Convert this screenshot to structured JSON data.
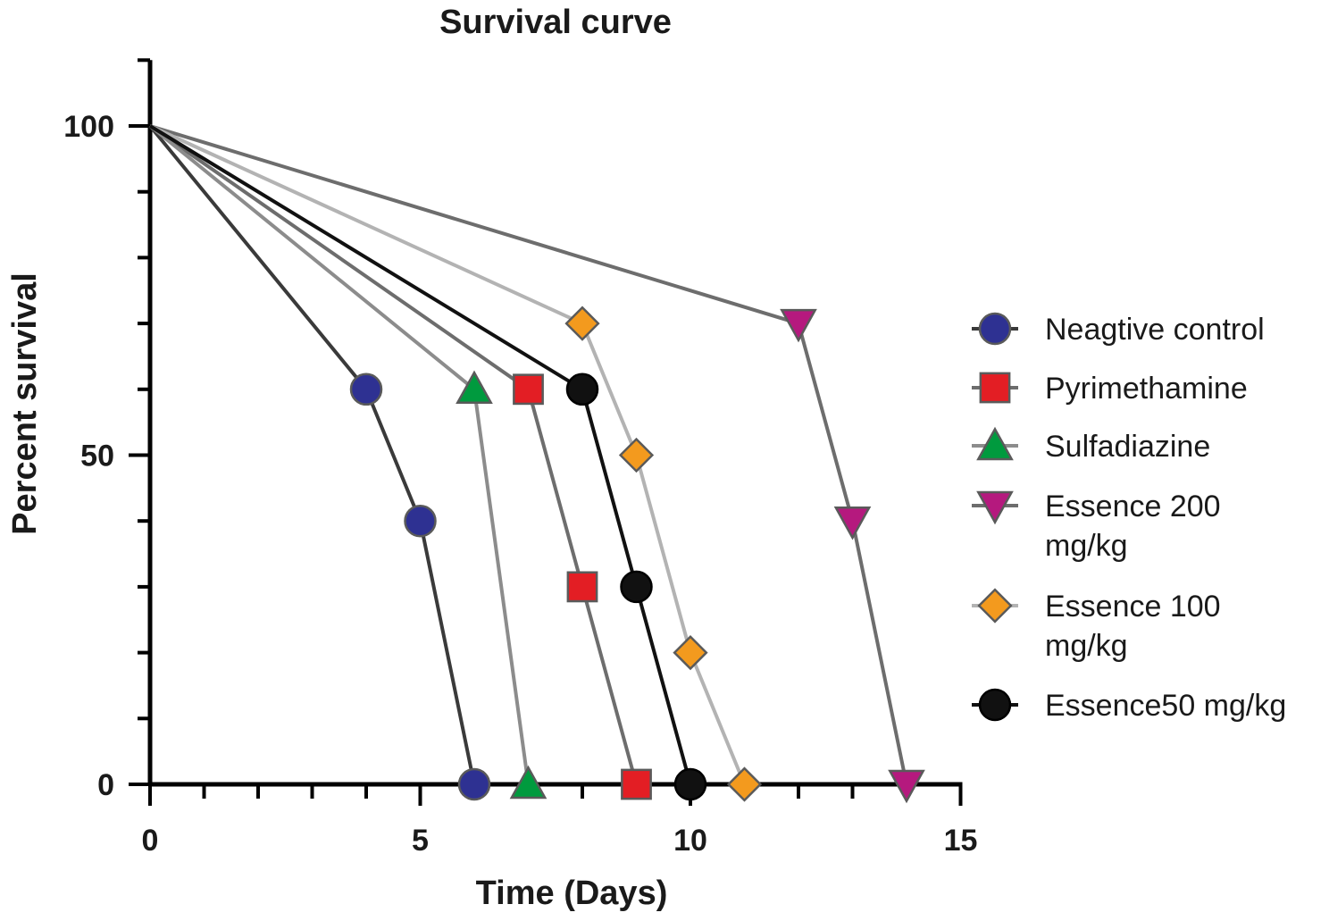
{
  "chart_data": {
    "type": "line",
    "title": "Survival curve",
    "xlabel": "Time (Days)",
    "ylabel": "Percent survival",
    "xlim": [
      0,
      15
    ],
    "ylim": [
      0,
      110
    ],
    "x_ticks": [
      "0",
      "5",
      "10",
      "15"
    ],
    "y_ticks": [
      "0",
      "50",
      "100"
    ],
    "grid": false,
    "legend_position": "right",
    "series": [
      {
        "name": "Neagtive control",
        "marker": "circle",
        "marker_color": "#2e3192",
        "line_color": "#3a3a3a",
        "x": [
          0,
          4,
          5,
          6
        ],
        "y": [
          100,
          60,
          40,
          0
        ]
      },
      {
        "name": "Pyrimethamine",
        "marker": "square",
        "marker_color": "#e31e24",
        "line_color": "#6d6d6d",
        "x": [
          0,
          7,
          8,
          9
        ],
        "y": [
          100,
          60,
          30,
          0
        ]
      },
      {
        "name": "Sulfadiazine",
        "marker": "triangle-up",
        "marker_color": "#009a3e",
        "line_color": "#8c8c8c",
        "x": [
          0,
          6,
          7
        ],
        "y": [
          100,
          60,
          0
        ]
      },
      {
        "name": "Essence 200 mg/kg",
        "marker": "triangle-down",
        "marker_color": "#b5197e",
        "line_color": "#6d6d6d",
        "x": [
          0,
          12,
          13,
          14
        ],
        "y": [
          100,
          70,
          40,
          0
        ]
      },
      {
        "name": "Essence 100 mg/kg",
        "marker": "diamond",
        "marker_color": "#f39a1e",
        "line_color": "#b3b3b3",
        "x": [
          0,
          8,
          9,
          10,
          11
        ],
        "y": [
          100,
          70,
          50,
          20,
          0
        ]
      },
      {
        "name": "Essence50 mg/kg",
        "marker": "circle",
        "marker_color": "#111111",
        "line_color": "#111111",
        "x": [
          0,
          8,
          9,
          10
        ],
        "y": [
          100,
          60,
          30,
          0
        ]
      }
    ],
    "legend_lines": [
      [
        "Neagtive control"
      ],
      [
        "Pyrimethamine"
      ],
      [
        "Sulfadiazine"
      ],
      [
        "Essence 200",
        "mg/kg"
      ],
      [
        "Essence 100",
        "mg/kg"
      ],
      [
        "Essence50 mg/kg"
      ]
    ]
  }
}
